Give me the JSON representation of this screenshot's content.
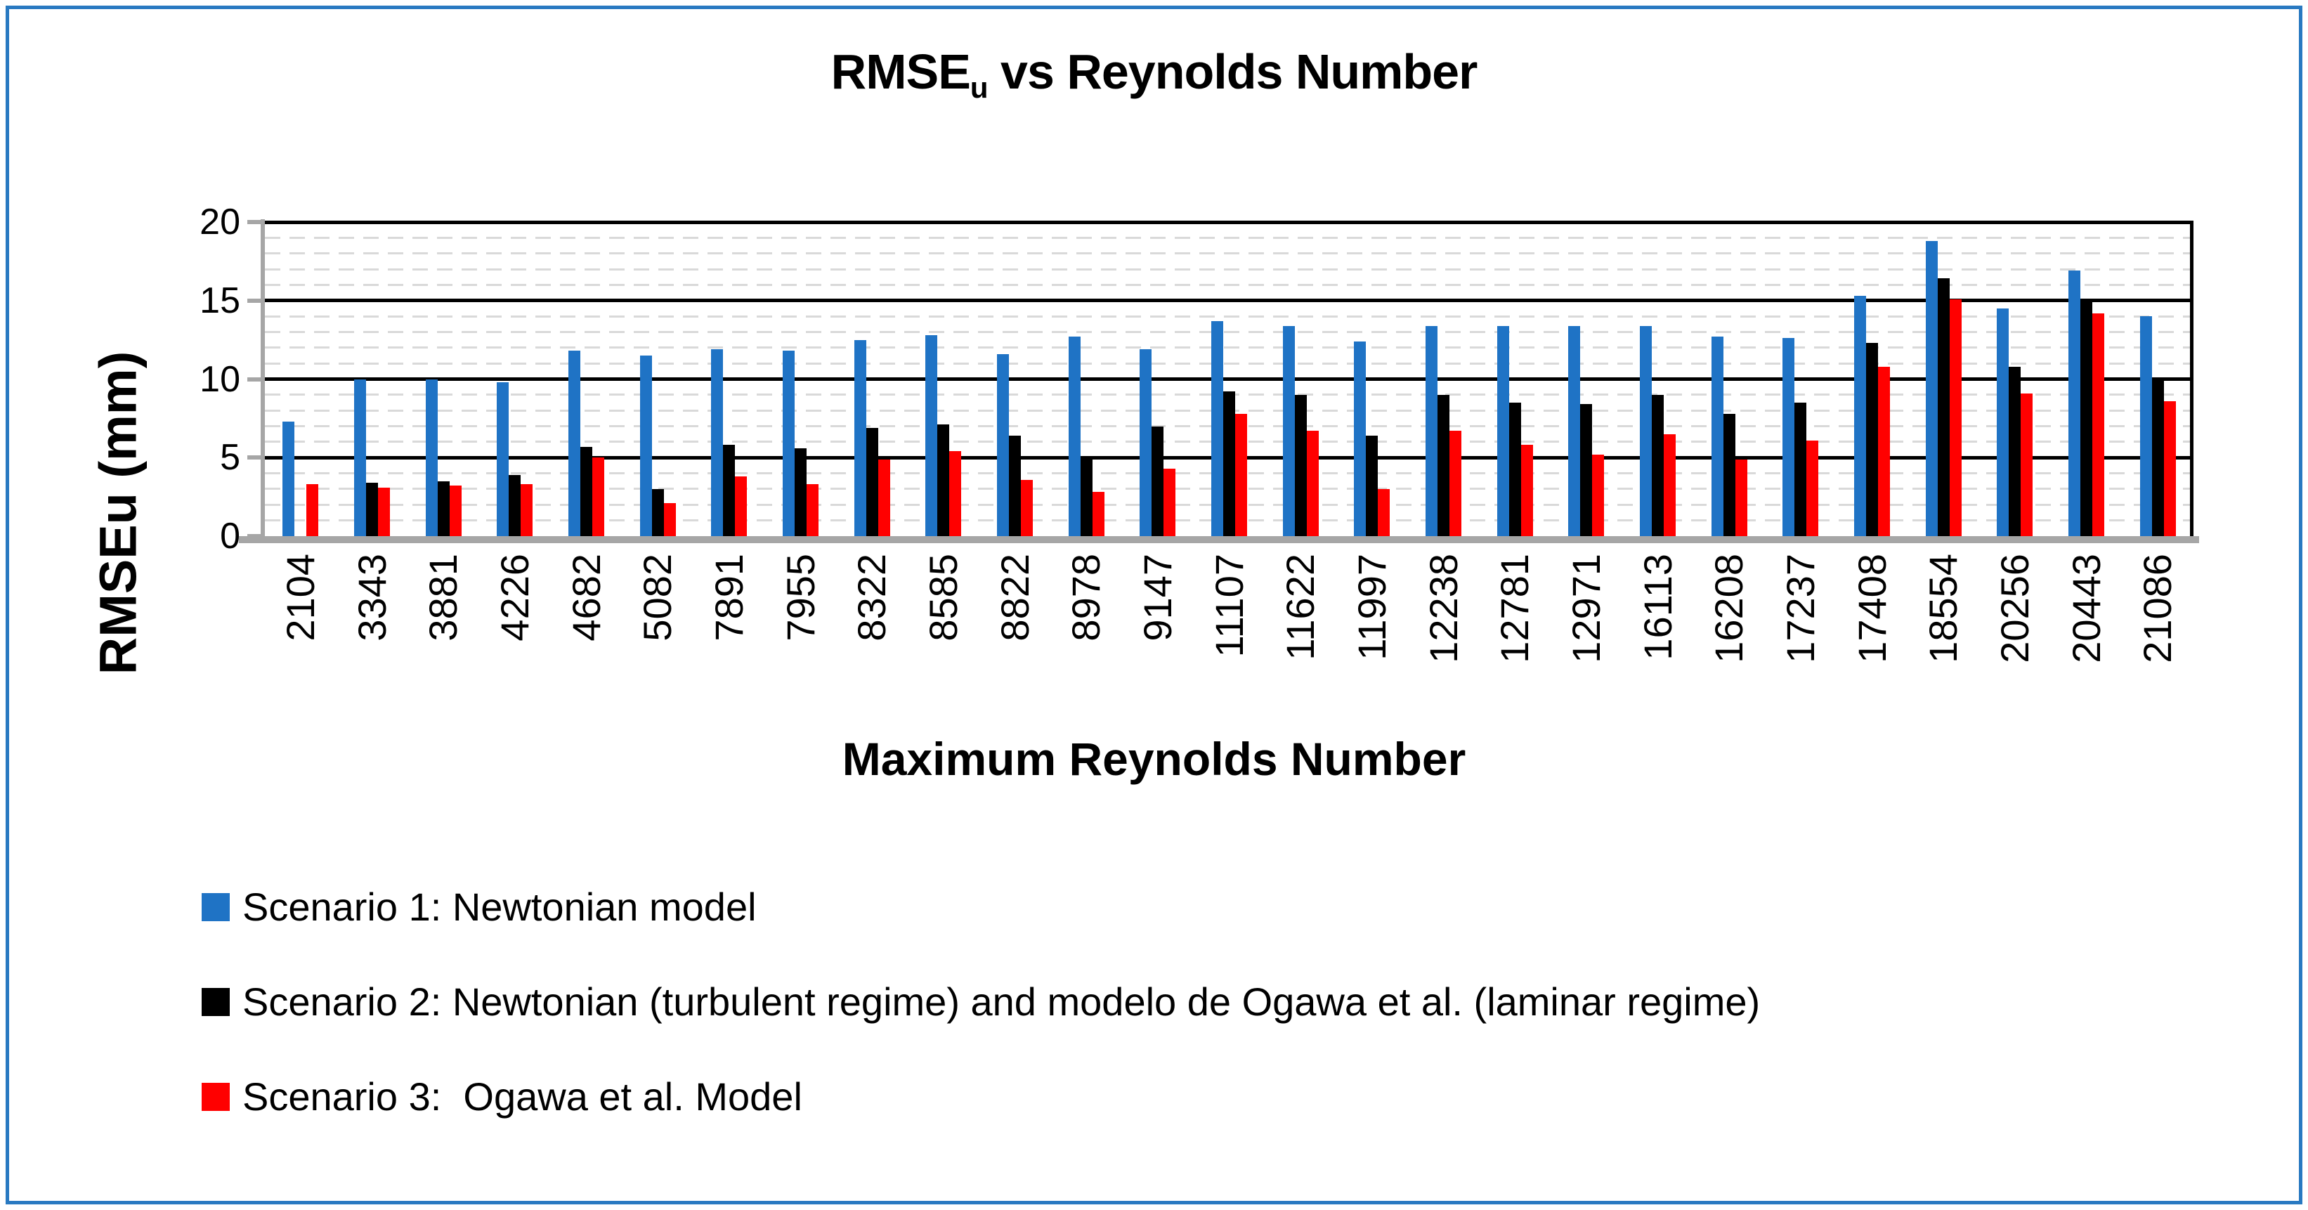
{
  "chart_data": {
    "type": "bar",
    "title": {
      "prefix": "RMSE",
      "subscript": "u",
      "suffix": " vs Reynolds Number"
    },
    "xlabel": "Maximum Reynolds Number",
    "ylabel": "RMSEu (mm)",
    "ylim": [
      0,
      20
    ],
    "y_ticks": [
      0,
      5,
      10,
      15,
      20
    ],
    "minor_grid_step": 1,
    "grid": true,
    "legend_position": "bottom-left",
    "categories": [
      "2104",
      "3343",
      "3881",
      "4226",
      "4682",
      "5082",
      "7891",
      "7955",
      "8322",
      "8585",
      "8822",
      "8978",
      "9147",
      "11107",
      "11622",
      "11997",
      "12238",
      "12781",
      "12971",
      "16113",
      "16208",
      "17237",
      "17408",
      "18554",
      "20256",
      "20443",
      "21086"
    ],
    "series": [
      {
        "name": "Scenario 1: Newtonian model",
        "color": "#1F73C5",
        "values": [
          7.3,
          10.0,
          10.0,
          9.8,
          11.8,
          11.5,
          11.9,
          11.8,
          12.5,
          12.8,
          11.6,
          12.7,
          11.9,
          13.7,
          13.4,
          12.4,
          13.4,
          13.4,
          13.4,
          13.4,
          12.7,
          12.6,
          15.3,
          18.8,
          14.5,
          16.9,
          14.0
        ]
      },
      {
        "name": "Scenario 2: Newtonian (turbulent regime) and modelo de Ogawa et al. (laminar regime)",
        "color": "#000000",
        "values": [
          0,
          3.4,
          3.5,
          3.9,
          5.7,
          3.0,
          5.8,
          5.6,
          6.9,
          7.1,
          6.4,
          5.0,
          7.0,
          9.2,
          9.0,
          6.4,
          9.0,
          8.5,
          8.4,
          9.0,
          7.8,
          8.5,
          12.3,
          16.4,
          10.8,
          14.9,
          10.0
        ]
      },
      {
        "name": "Scenario 3:  Ogawa et al. Model",
        "color": "#FF0000",
        "values": [
          3.3,
          3.1,
          3.2,
          3.3,
          5.0,
          2.1,
          3.8,
          3.3,
          4.9,
          5.4,
          3.6,
          2.8,
          4.3,
          7.8,
          6.7,
          3.0,
          6.7,
          5.8,
          5.2,
          6.5,
          4.9,
          6.1,
          10.8,
          15.1,
          9.1,
          14.2,
          8.6
        ]
      }
    ]
  },
  "style": {
    "frame_border_color": "#2979C1",
    "axis_color": "#A6A6A6",
    "major_grid_color": "#000000",
    "minor_grid_color": "#D9D9D9",
    "background": "#FFFFFF"
  }
}
